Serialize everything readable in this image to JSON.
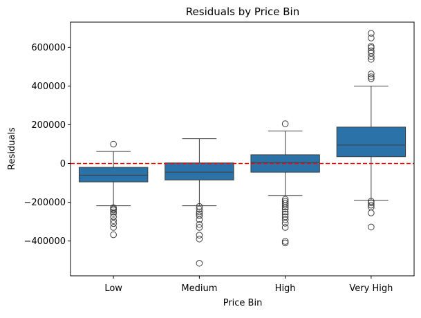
{
  "chart_data": {
    "type": "box",
    "title": "Residuals by Price Bin",
    "xlabel": "Price Bin",
    "ylabel": "Residuals",
    "ylim": [
      -580000,
      730000
    ],
    "yticks": [
      -400000,
      -200000,
      0,
      200000,
      400000,
      600000
    ],
    "ytick_labels": [
      "−400000",
      "−200000",
      "0",
      "200000",
      "400000",
      "600000"
    ],
    "categories": [
      "Low",
      "Medium",
      "High",
      "Very High"
    ],
    "box_color": "#2b72a8",
    "reference_line": {
      "y": 0,
      "color": "#ff0000",
      "style": "dashed"
    },
    "grid": false,
    "boxes": [
      {
        "category": "Low",
        "whisker_low": -218000,
        "q1": -95000,
        "median": -60000,
        "q3": -20000,
        "whisker_high": 62000,
        "outliers": [
          100000,
          -228000,
          -235000,
          -240000,
          -250000,
          -258000,
          -275000,
          -295000,
          -310000,
          -330000,
          -368000
        ]
      },
      {
        "category": "Medium",
        "whisker_low": -218000,
        "q1": -85000,
        "median": -45000,
        "q3": 3000,
        "whisker_high": 128000,
        "outliers": [
          -222000,
          -235000,
          -250000,
          -260000,
          -270000,
          -290000,
          -315000,
          -330000,
          -370000,
          -390000,
          -515000
        ]
      },
      {
        "category": "High",
        "whisker_low": -165000,
        "q1": -45000,
        "median": 5000,
        "q3": 45000,
        "whisker_high": 168000,
        "outliers": [
          205000,
          -185000,
          -195000,
          -205000,
          -215000,
          -225000,
          -235000,
          -250000,
          -262000,
          -275000,
          -290000,
          -308000,
          -330000,
          -402000,
          -410000
        ]
      },
      {
        "category": "Very High",
        "whisker_low": -190000,
        "q1": 35000,
        "median": 95000,
        "q3": 188000,
        "whisker_high": 400000,
        "outliers": [
          438000,
          448000,
          462000,
          538000,
          552000,
          570000,
          582000,
          598000,
          605000,
          648000,
          672000,
          -195000,
          -203000,
          -215000,
          -225000,
          -255000,
          -328000
        ]
      }
    ]
  }
}
